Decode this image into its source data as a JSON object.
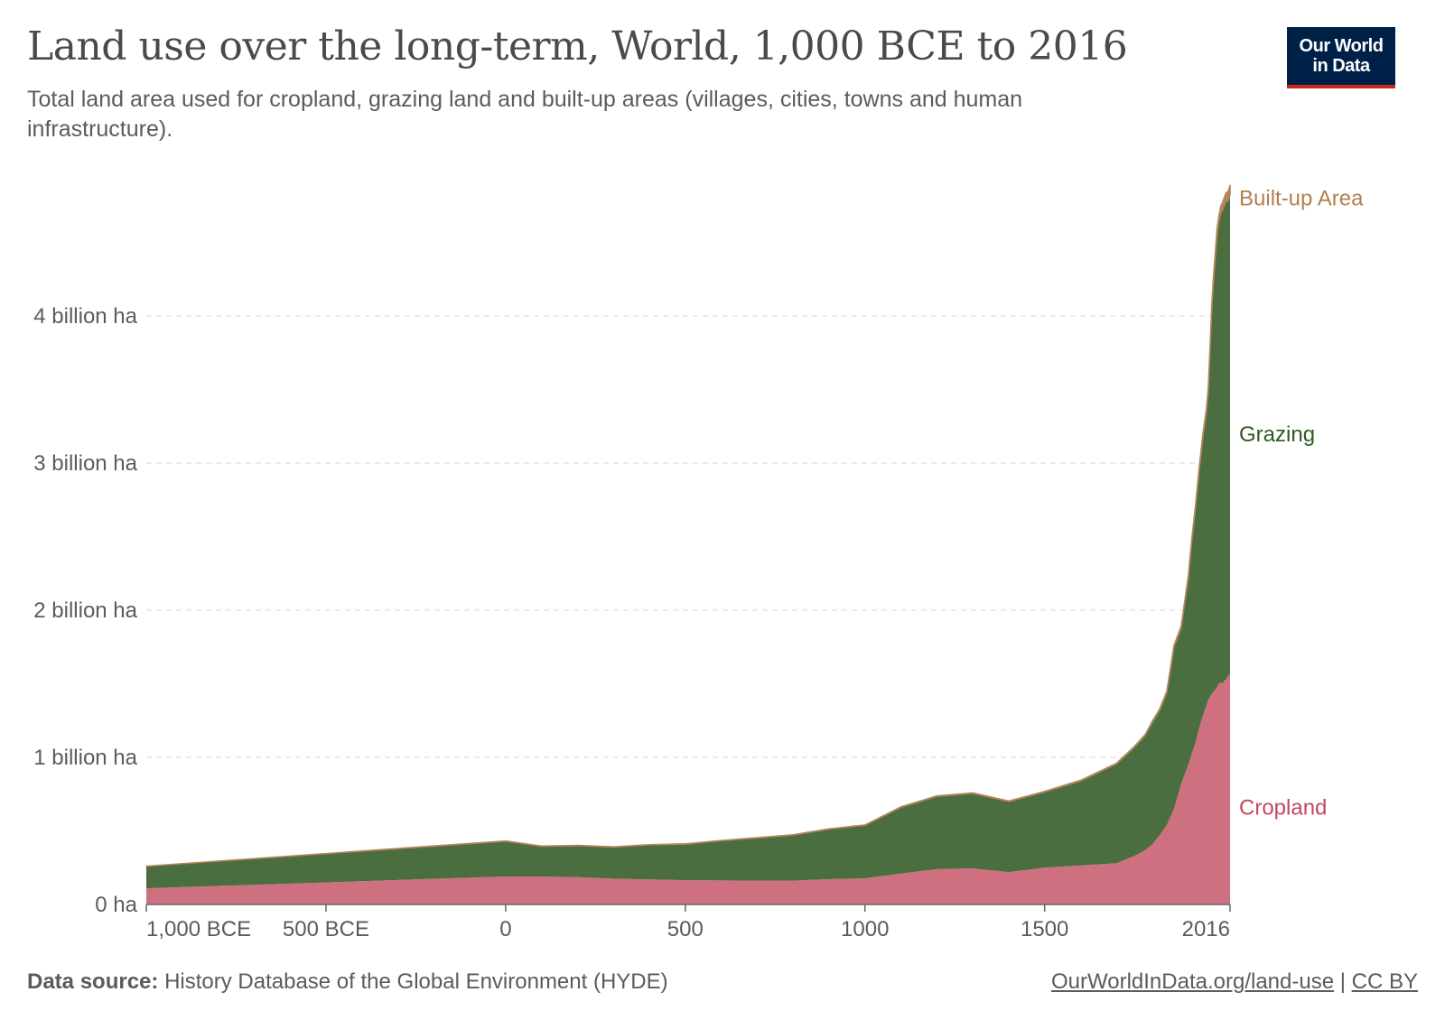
{
  "title": "Land use over the long-term, World, 1,000 BCE to 2016",
  "subtitle": "Total land area used for cropland, grazing land and built-up areas (villages, cities, towns and human infrastructure).",
  "logo": {
    "line1": "Our World",
    "line2": "in Data"
  },
  "footer": {
    "source_label": "Data source:",
    "source_text": "History Database of the Global Environment (HYDE)",
    "link_text": "OurWorldInData.org/land-use",
    "separator": "|",
    "license": "CC BY"
  },
  "colors": {
    "cropland": "#cf7080",
    "grazing": "#4a6e3f",
    "built_up": "#b4855a",
    "cropland_label": "#c8465d",
    "grazing_label": "#2f5a23",
    "built_up_label": "#b38050",
    "grid": "#dddddd",
    "axis": "#666666",
    "text": "#5b5b5b"
  },
  "chart_data": {
    "type": "area",
    "stacked": true,
    "x_unit": "year",
    "xlim": [
      -1000,
      2016
    ],
    "ylim": [
      0,
      5000000000
    ],
    "x_ticks": [
      {
        "value": -1000,
        "label": "1,000 BCE"
      },
      {
        "value": -500,
        "label": "500 BCE"
      },
      {
        "value": 0,
        "label": "0"
      },
      {
        "value": 500,
        "label": "500"
      },
      {
        "value": 1000,
        "label": "1000"
      },
      {
        "value": 1500,
        "label": "1500"
      },
      {
        "value": 2016,
        "label": "2016"
      }
    ],
    "y_ticks": [
      {
        "value": 0,
        "label": "0 ha"
      },
      {
        "value": 1000000000,
        "label": "1 billion ha"
      },
      {
        "value": 2000000000,
        "label": "2 billion ha"
      },
      {
        "value": 3000000000,
        "label": "3 billion ha"
      },
      {
        "value": 4000000000,
        "label": "4 billion ha"
      }
    ],
    "grid": "horizontal dashed",
    "legend": "inline-right",
    "x": [
      -1000,
      0,
      100,
      200,
      300,
      400,
      500,
      600,
      700,
      800,
      900,
      1000,
      1100,
      1200,
      1300,
      1400,
      1500,
      1600,
      1700,
      1750,
      1780,
      1800,
      1820,
      1840,
      1860,
      1880,
      1900,
      1910,
      1920,
      1930,
      1940,
      1950,
      1955,
      1960,
      1965,
      1970,
      1975,
      1980,
      1985,
      1990,
      1995,
      2000,
      2005,
      2010,
      2016
    ],
    "series": [
      {
        "name": "Cropland",
        "values": [
          110000000,
          190000000,
          190000000,
          185000000,
          175000000,
          170000000,
          165000000,
          163000000,
          162000000,
          162000000,
          172000000,
          178000000,
          210000000,
          240000000,
          245000000,
          220000000,
          250000000,
          265000000,
          280000000,
          330000000,
          370000000,
          410000000,
          470000000,
          540000000,
          650000000,
          820000000,
          950000000,
          1030000000,
          1100000000,
          1200000000,
          1280000000,
          1350000000,
          1390000000,
          1410000000,
          1430000000,
          1450000000,
          1460000000,
          1480000000,
          1500000000,
          1510000000,
          1500000000,
          1520000000,
          1530000000,
          1550000000,
          1570000000
        ]
      },
      {
        "name": "Grazing",
        "values": [
          150000000,
          240000000,
          205000000,
          215000000,
          215000000,
          235000000,
          245000000,
          270000000,
          290000000,
          310000000,
          340000000,
          360000000,
          450000000,
          495000000,
          510000000,
          480000000,
          515000000,
          575000000,
          675000000,
          740000000,
          780000000,
          830000000,
          850000000,
          900000000,
          1100000000,
          1060000000,
          1270000000,
          1450000000,
          1600000000,
          1750000000,
          1890000000,
          1990000000,
          2080000000,
          2330000000,
          2610000000,
          2790000000,
          2940000000,
          3080000000,
          3140000000,
          3190000000,
          3220000000,
          3230000000,
          3250000000,
          3230000000,
          3250000000
        ]
      },
      {
        "name": "Built-up Area",
        "values": [
          300000,
          2000000,
          2000000,
          2000000,
          2000000,
          2000000,
          2000000,
          2000000,
          2000000,
          2000000,
          2000000,
          2500000,
          3000000,
          3000000,
          3000000,
          3000000,
          3500000,
          4000000,
          5000000,
          5000000,
          6000000,
          7000000,
          8000000,
          9000000,
          11000000,
          13000000,
          15000000,
          16000000,
          18000000,
          20000000,
          22000000,
          25000000,
          27000000,
          29000000,
          31000000,
          34000000,
          37000000,
          40000000,
          43000000,
          46000000,
          50000000,
          54000000,
          58000000,
          63000000,
          68000000
        ]
      }
    ]
  }
}
